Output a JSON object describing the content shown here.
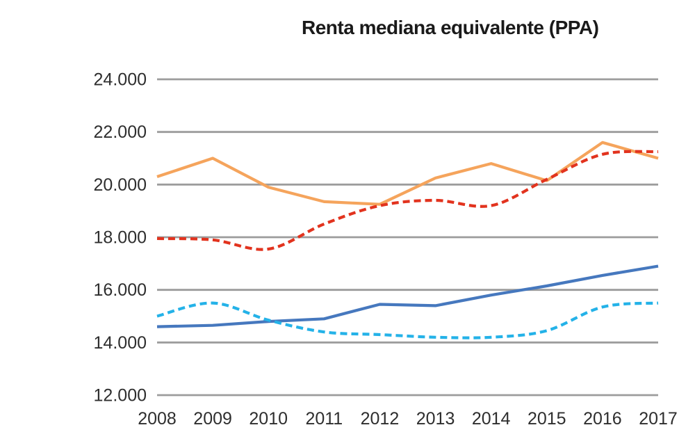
{
  "chart": {
    "title": "Renta mediana equivalente (PPA)"
  },
  "chart_data": {
    "type": "line",
    "title": "Renta mediana equivalente (PPA)",
    "x": [
      "2008",
      "2009",
      "2010",
      "2011",
      "2012",
      "2013",
      "2014",
      "2015",
      "2016",
      "2017"
    ],
    "ylim": [
      12000,
      24000
    ],
    "ytick_step": 2000,
    "ytick_labels": [
      "12.000",
      "14.000",
      "16.000",
      "18.000",
      "20.000",
      "22.000",
      "24.000"
    ],
    "grid": "horizontal-only",
    "legend": "none",
    "styles": {
      "background": "#FFFFFF",
      "gridline_color": "#9C9C9C",
      "tick_label_color": "#2E2E2E",
      "title_color": "#1A1A1A"
    },
    "series": [
      {
        "name": "orange-solid",
        "line_style": "solid",
        "smooth": false,
        "color": "#F5A45C",
        "values": [
          20300,
          21000,
          19900,
          19350,
          19250,
          20250,
          20800,
          20150,
          21600,
          21000
        ]
      },
      {
        "name": "red-dashed",
        "line_style": "dashed",
        "smooth": true,
        "color": "#E2331E",
        "values": [
          17950,
          17900,
          17550,
          18500,
          19200,
          19400,
          19200,
          20200,
          21150,
          21250
        ]
      },
      {
        "name": "blue-solid",
        "line_style": "solid",
        "smooth": false,
        "color": "#4678BE",
        "values": [
          14600,
          14650,
          14800,
          14900,
          15450,
          15400,
          15800,
          16150,
          16550,
          16900
        ]
      },
      {
        "name": "cyan-dashed",
        "line_style": "dashed",
        "smooth": true,
        "color": "#24B2E8",
        "values": [
          15000,
          15500,
          14850,
          14400,
          14300,
          14200,
          14200,
          14450,
          15350,
          15500
        ]
      }
    ]
  }
}
